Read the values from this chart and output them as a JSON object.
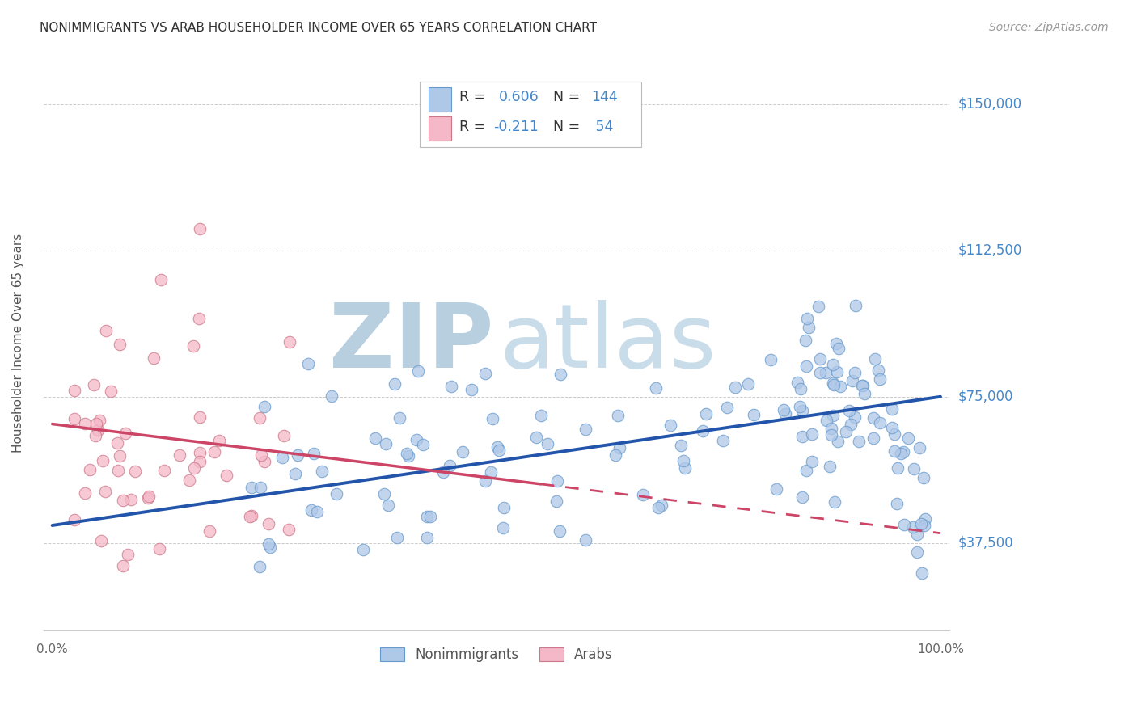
{
  "title": "NONIMMIGRANTS VS ARAB HOUSEHOLDER INCOME OVER 65 YEARS CORRELATION CHART",
  "source": "Source: ZipAtlas.com",
  "ylabel": "Householder Income Over 65 years",
  "ytick_labels": [
    "$37,500",
    "$75,000",
    "$112,500",
    "$150,000"
  ],
  "ytick_values": [
    37500,
    75000,
    112500,
    150000
  ],
  "ymin": 15000,
  "ymax": 162500,
  "xmin": -0.01,
  "xmax": 1.01,
  "blue_color": "#aec8e8",
  "blue_edge_color": "#6699cc",
  "blue_line_color": "#2255aa",
  "pink_color": "#f4b8c8",
  "pink_edge_color": "#cc7788",
  "pink_line_color": "#cc4466",
  "blue_text_color": "#4488cc",
  "title_color": "#333333",
  "watermark_color": "#d0dff0",
  "background_color": "#ffffff",
  "grid_color": "#cccccc"
}
